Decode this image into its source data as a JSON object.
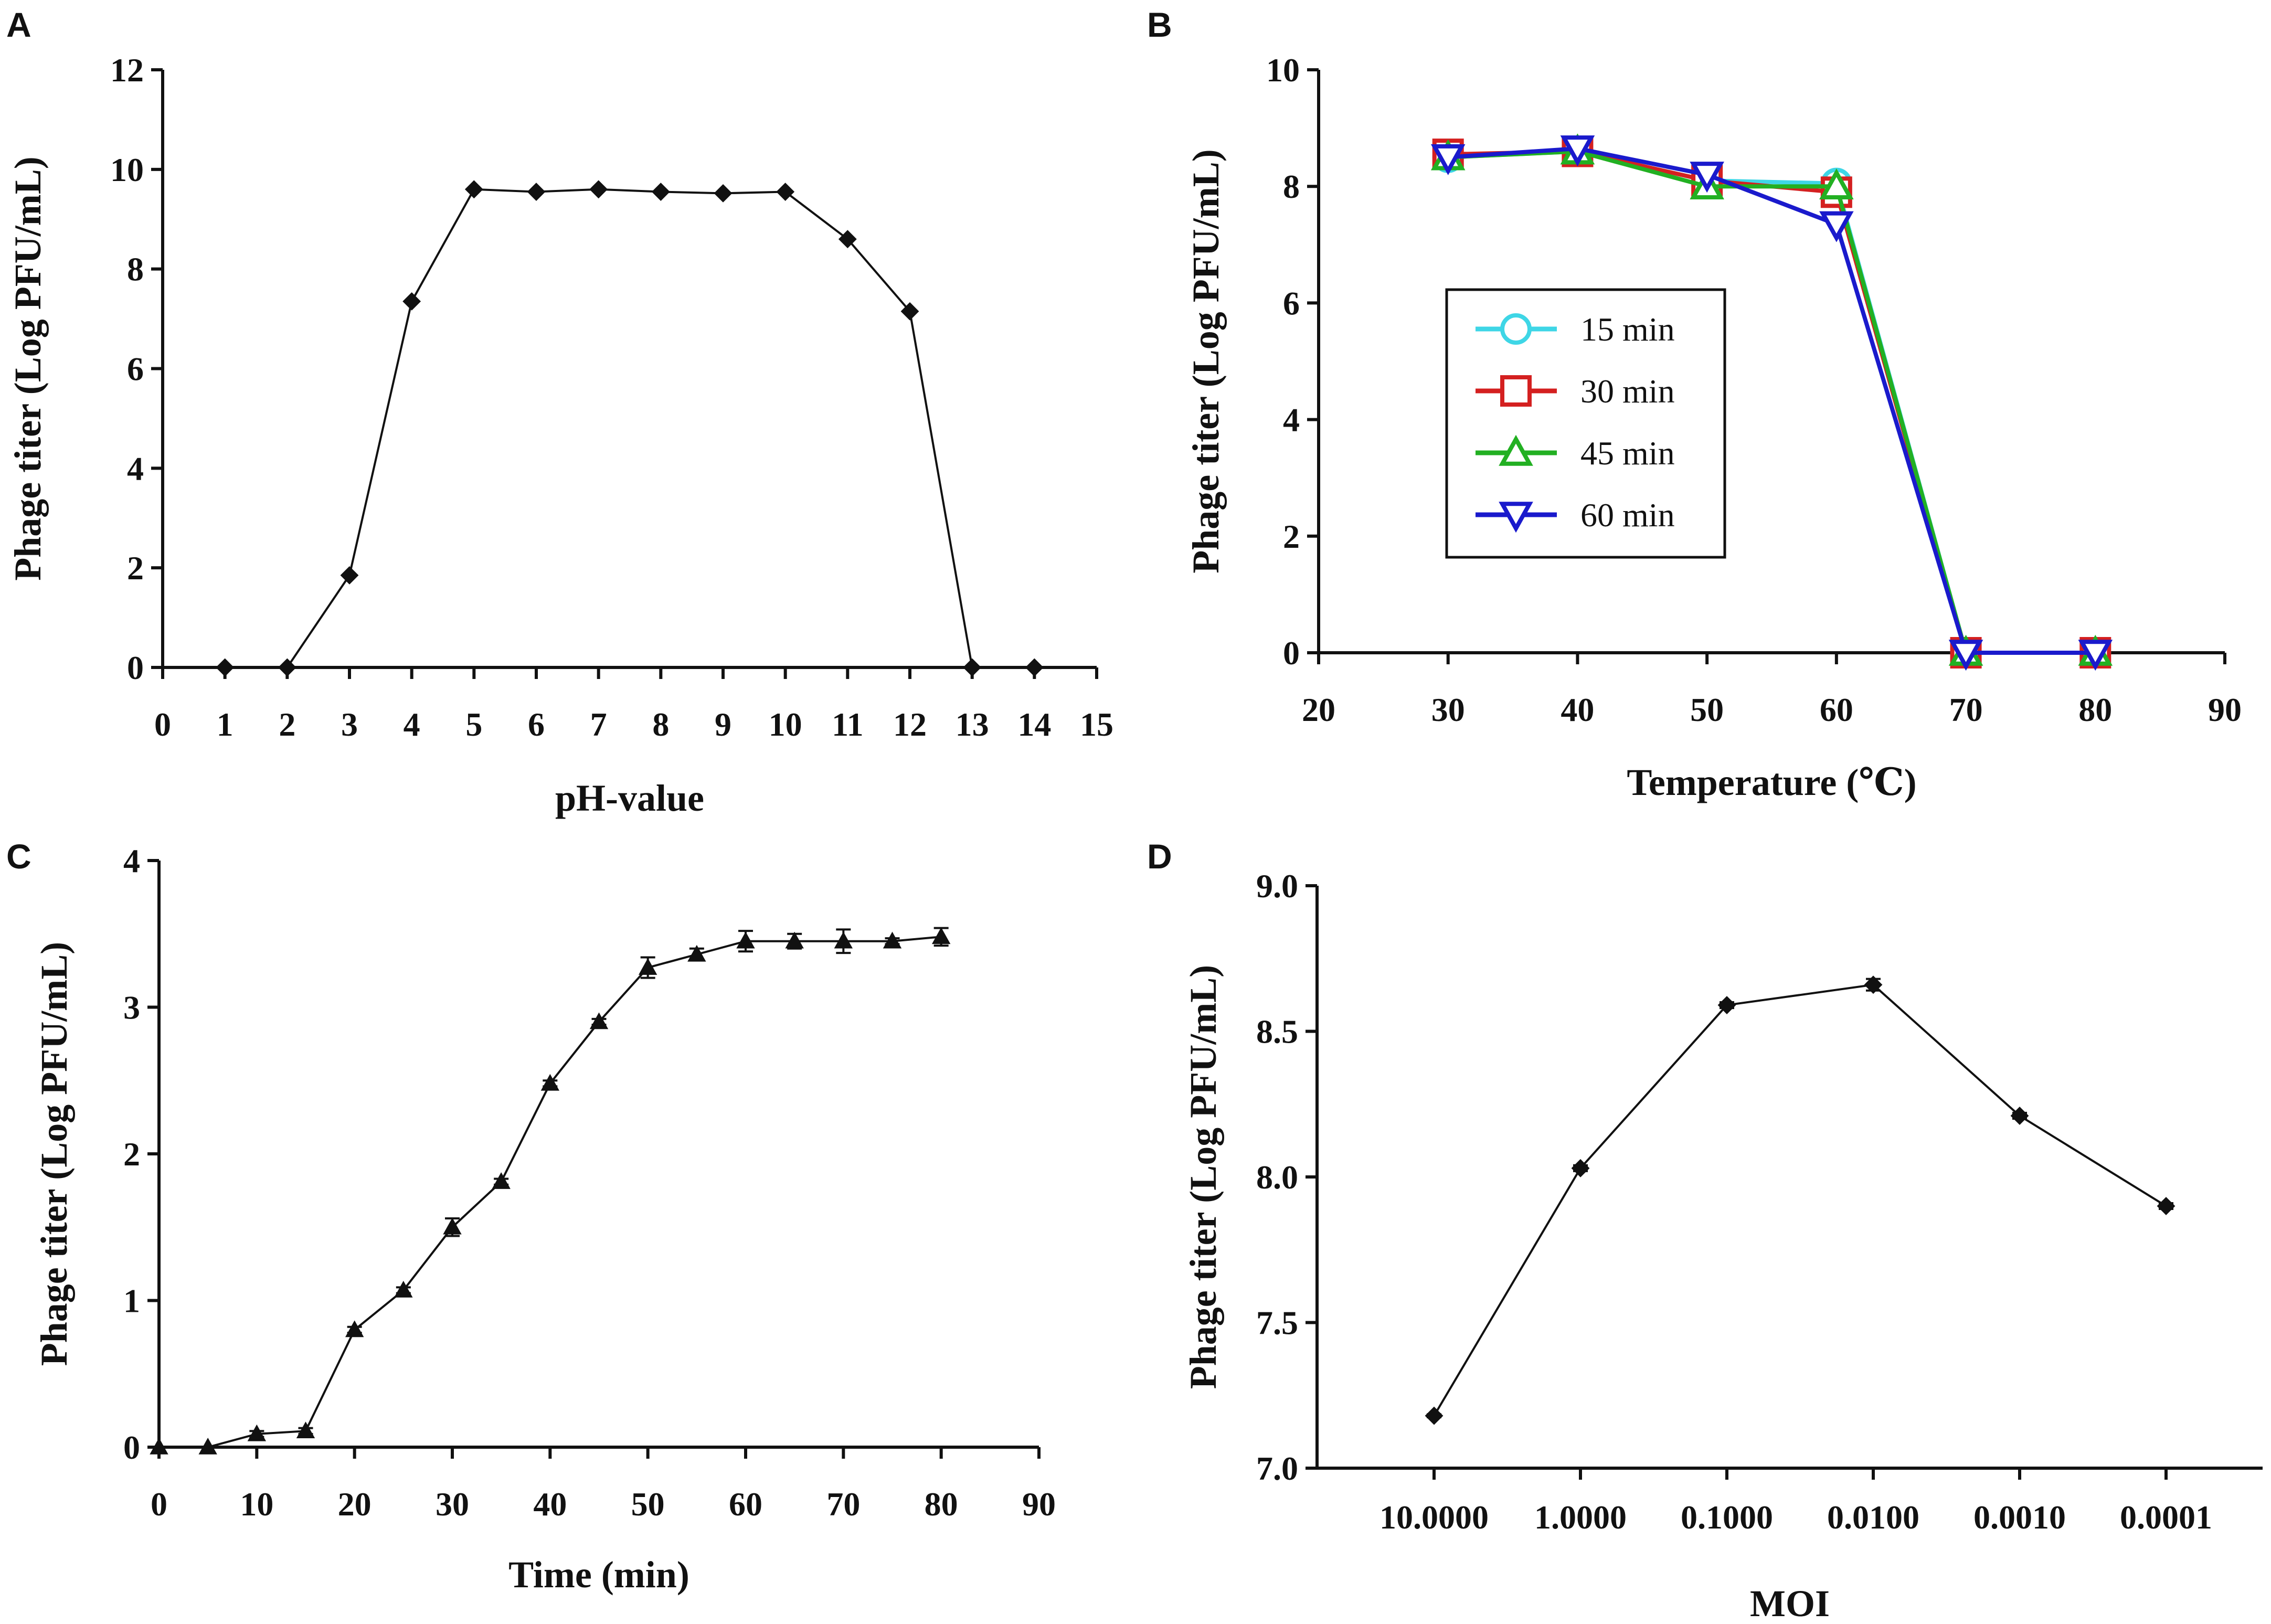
{
  "chart_data": [
    {
      "panel": "A",
      "type": "line",
      "title": "",
      "xlabel": "pH-value",
      "ylabel": "Phage titer (Log PFU/mL)",
      "xlim": [
        0,
        15
      ],
      "ylim": [
        0,
        12
      ],
      "xticks": [
        0,
        1,
        2,
        3,
        4,
        5,
        6,
        7,
        8,
        9,
        10,
        11,
        12,
        13,
        14,
        15
      ],
      "yticks": [
        0,
        2,
        4,
        6,
        8,
        10,
        12
      ],
      "marker": "diamond",
      "color": "#111111",
      "series": [
        {
          "name": "phage titer",
          "x": [
            1,
            2,
            3,
            4,
            5,
            6,
            7,
            8,
            9,
            10,
            11,
            12,
            13,
            14
          ],
          "values": [
            0,
            0,
            1.85,
            7.35,
            9.6,
            9.55,
            9.6,
            9.55,
            9.52,
            9.55,
            8.6,
            7.15,
            0,
            0
          ]
        }
      ]
    },
    {
      "panel": "B",
      "type": "line",
      "title": "",
      "xlabel": "Temperature (℃)",
      "ylabel": "Phage titer (Log PFU/mL)",
      "xlim": [
        20,
        90
      ],
      "ylim": [
        0,
        10
      ],
      "xticks": [
        20,
        30,
        40,
        50,
        60,
        70,
        80,
        90
      ],
      "yticks": [
        0,
        2,
        4,
        6,
        8,
        10
      ],
      "legend": "center-left",
      "series": [
        {
          "name": "15 min",
          "color": "#3ed6e6",
          "marker": "circle",
          "x": [
            30,
            40,
            50,
            60,
            70,
            80
          ],
          "values": [
            8.5,
            8.6,
            8.1,
            8.05,
            0,
            0
          ]
        },
        {
          "name": "30 min",
          "color": "#d42020",
          "marker": "square",
          "x": [
            30,
            40,
            50,
            60,
            70,
            80
          ],
          "values": [
            8.55,
            8.6,
            8.1,
            7.9,
            0,
            0
          ]
        },
        {
          "name": "45 min",
          "color": "#22b022",
          "marker": "triangle-up",
          "x": [
            30,
            40,
            50,
            60,
            70,
            80
          ],
          "values": [
            8.5,
            8.6,
            8.0,
            8.0,
            0,
            0
          ]
        },
        {
          "name": "60 min",
          "color": "#1a1acc",
          "marker": "triangle-down",
          "x": [
            30,
            40,
            50,
            60,
            70,
            80
          ],
          "values": [
            8.5,
            8.65,
            8.2,
            7.35,
            0,
            0
          ]
        }
      ]
    },
    {
      "panel": "C",
      "type": "line",
      "title": "",
      "xlabel": "Time (min)",
      "ylabel": "Phage titer (Log PFU/mL)",
      "xlim": [
        0,
        90
      ],
      "ylim": [
        0,
        4
      ],
      "xticks": [
        0,
        10,
        20,
        30,
        40,
        50,
        60,
        70,
        80,
        90
      ],
      "yticks": [
        0,
        1,
        2,
        3,
        4
      ],
      "marker": "triangle-up",
      "color": "#111111",
      "series": [
        {
          "name": "phage titer",
          "x": [
            0,
            5,
            10,
            15,
            20,
            25,
            30,
            35,
            40,
            45,
            50,
            55,
            60,
            65,
            70,
            75,
            80
          ],
          "values": [
            0,
            0,
            0.09,
            0.11,
            0.8,
            1.07,
            1.5,
            1.81,
            2.48,
            2.9,
            3.27,
            3.36,
            3.45,
            3.45,
            3.45,
            3.45,
            3.48
          ],
          "errors": [
            0,
            0,
            0.02,
            0.02,
            0.02,
            0.02,
            0.06,
            0.02,
            0.02,
            0.02,
            0.07,
            0.04,
            0.07,
            0.05,
            0.08,
            0.02,
            0.06
          ]
        }
      ]
    },
    {
      "panel": "D",
      "type": "line",
      "title": "",
      "xlabel": "MOI",
      "ylabel": "Phage titer (Log PFU/mL)",
      "categories": [
        "10.0000",
        "1.0000",
        "0.1000",
        "0.0100",
        "0.0010",
        "0.0001"
      ],
      "ylim": [
        7.0,
        9.0
      ],
      "yticks": [
        "7.0",
        "7.5",
        "8.0",
        "8.5",
        "9.0"
      ],
      "marker": "diamond",
      "color": "#111111",
      "series": [
        {
          "name": "phage titer",
          "values": [
            7.18,
            8.03,
            8.59,
            8.66,
            8.21,
            7.9
          ],
          "errors": [
            0.005,
            0.01,
            0.01,
            0.02,
            0.01,
            0.01
          ]
        }
      ]
    }
  ]
}
